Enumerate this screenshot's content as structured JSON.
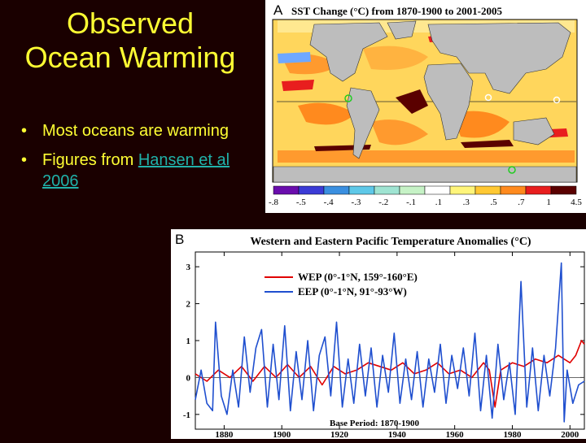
{
  "slide": {
    "title_line1": "Observed",
    "title_line2": "Ocean Warming",
    "bullets": {
      "b1": "Most oceans are warming",
      "b2_prefix": "Figures from ",
      "b2_link": "Hansen et al 2006"
    }
  },
  "map": {
    "panel_letter": "A",
    "title": "SST Change (°C) from 1870-1900 to 2001-2005",
    "colorbar_labels": [
      "-.8",
      "-.5",
      "-.4",
      "-.3",
      "-.2",
      "-.1",
      ".1",
      ".3",
      ".5",
      ".7",
      "1",
      "4.5"
    ],
    "colorbar_colors": [
      "#6a0dad",
      "#3b3bd6",
      "#3a8fe0",
      "#5ec8e8",
      "#9fe4d2",
      "#c6f2c6",
      "#ffffff",
      "#fff57a",
      "#ffc833",
      "#ff8a1e",
      "#e81e1e",
      "#5a0000"
    ],
    "land_color": "#bdbdbd"
  },
  "chart_data": {
    "type": "line",
    "panel_letter": "B",
    "title": "Western and Eastern Pacific Temperature Anomalies (°C)",
    "xlim": [
      1870,
      2005
    ],
    "ylim": [
      -1.4,
      3.4
    ],
    "xticks": [
      1880,
      1900,
      1920,
      1940,
      1960,
      1980,
      2000
    ],
    "yticks": [
      -1,
      0,
      1,
      2,
      3
    ],
    "annotation": "Base Period: 1870-1900",
    "legend_position": "top-left",
    "series": [
      {
        "name": "WEP (0°-1°N, 159°-160°E)",
        "color": "#e00000",
        "x": [
          1870,
          1874,
          1878,
          1882,
          1886,
          1890,
          1894,
          1898,
          1902,
          1906,
          1910,
          1914,
          1918,
          1922,
          1926,
          1930,
          1934,
          1938,
          1942,
          1946,
          1950,
          1954,
          1958,
          1962,
          1966,
          1970,
          1972,
          1974,
          1976,
          1980,
          1984,
          1988,
          1992,
          1996,
          2000,
          2002,
          2004,
          2005
        ],
        "y": [
          0.1,
          -0.1,
          0.2,
          0.0,
          0.3,
          -0.1,
          0.3,
          0.0,
          0.35,
          0.0,
          0.3,
          -0.2,
          0.3,
          0.1,
          0.2,
          0.4,
          0.3,
          0.2,
          0.4,
          0.1,
          0.2,
          0.4,
          0.1,
          0.2,
          0.0,
          0.4,
          0.2,
          -0.8,
          0.2,
          0.4,
          0.3,
          0.5,
          0.4,
          0.6,
          0.4,
          0.6,
          1.0,
          0.9
        ]
      },
      {
        "name": "EEP (0°-1°N, 91°-93°W)",
        "color": "#1f4fcf",
        "x": [
          1870,
          1872,
          1874,
          1876,
          1877,
          1879,
          1881,
          1883,
          1885,
          1887,
          1889,
          1891,
          1893,
          1895,
          1897,
          1899,
          1901,
          1903,
          1905,
          1907,
          1909,
          1911,
          1913,
          1915,
          1917,
          1919,
          1921,
          1923,
          1925,
          1927,
          1929,
          1931,
          1933,
          1935,
          1937,
          1939,
          1941,
          1943,
          1945,
          1947,
          1949,
          1951,
          1953,
          1955,
          1957,
          1959,
          1961,
          1963,
          1965,
          1967,
          1969,
          1971,
          1973,
          1975,
          1977,
          1979,
          1981,
          1983,
          1985,
          1987,
          1989,
          1991,
          1993,
          1995,
          1997,
          1998,
          1999,
          2001,
          2003,
          2005
        ],
        "y": [
          -0.6,
          0.2,
          -0.7,
          -0.9,
          1.5,
          -0.5,
          -1.0,
          0.2,
          -0.8,
          1.1,
          -0.4,
          0.8,
          1.3,
          -0.8,
          0.9,
          -0.6,
          1.4,
          -0.9,
          0.7,
          -0.6,
          1.0,
          -0.9,
          0.6,
          1.1,
          -0.5,
          1.5,
          -0.8,
          0.5,
          -0.7,
          0.9,
          -0.5,
          0.8,
          -0.8,
          0.6,
          -0.4,
          1.2,
          -0.7,
          0.5,
          -0.6,
          0.7,
          -0.8,
          0.5,
          -0.4,
          0.9,
          -0.7,
          0.6,
          -0.3,
          0.8,
          -0.5,
          1.2,
          -0.9,
          0.6,
          -1.1,
          0.9,
          -0.6,
          0.4,
          -1.0,
          2.6,
          -0.8,
          0.8,
          -0.9,
          0.6,
          -0.5,
          0.8,
          3.1,
          -1.2,
          0.2,
          -0.7,
          -0.2,
          -0.1
        ]
      }
    ]
  }
}
